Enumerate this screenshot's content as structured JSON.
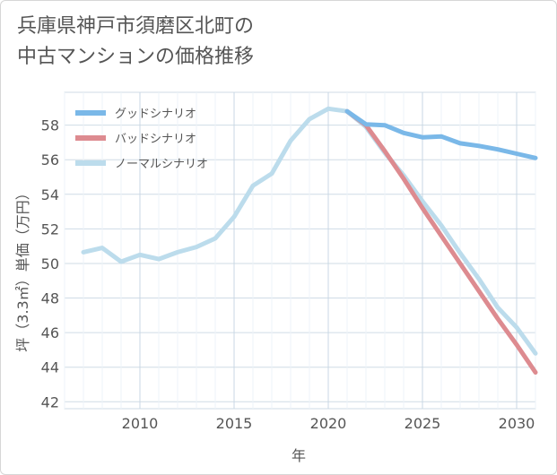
{
  "page_title": "兵庫県神戸市須磨区北町の\n中古マンションの価格推移",
  "chart_data": {
    "type": "line",
    "title": "兵庫県神戸市須磨区北町の中古マンションの価格推移",
    "xlabel": "年",
    "ylabel": "坪（3.3㎡）単価（万円）",
    "xlim": [
      2006,
      2031
    ],
    "ylim": [
      41.6,
      59.9
    ],
    "xticks": [
      2010,
      2015,
      2020,
      2025,
      2030
    ],
    "yticks": [
      42,
      44,
      46,
      48,
      50,
      52,
      54,
      56,
      58
    ],
    "legend": [
      "グッドシナリオ",
      "バッドシナリオ",
      "ノーマルシナリオ"
    ],
    "series": [
      {
        "name": "グッドシナリオ",
        "color": "#7ab8e8",
        "x": [
          2021,
          2022,
          2023,
          2024,
          2025,
          2026,
          2027,
          2028,
          2029,
          2030,
          2031
        ],
        "values": [
          58.8,
          58.05,
          58.0,
          57.55,
          57.3,
          57.35,
          56.95,
          56.8,
          56.6,
          56.35,
          56.1
        ]
      },
      {
        "name": "バッドシナリオ",
        "color": "#dd8b90",
        "x": [
          2021,
          2022,
          2023,
          2024,
          2025,
          2026,
          2027,
          2028,
          2029,
          2030,
          2031
        ],
        "values": [
          58.8,
          58.0,
          56.5,
          54.9,
          53.2,
          51.6,
          50.0,
          48.4,
          46.8,
          45.3,
          43.7
        ]
      },
      {
        "name": "ノーマルシナリオ",
        "color": "#bcdcec",
        "x": [
          2007,
          2008,
          2009,
          2010,
          2011,
          2012,
          2013,
          2014,
          2015,
          2016,
          2017,
          2018,
          2019,
          2020,
          2021,
          2022,
          2023,
          2024,
          2025,
          2026,
          2027,
          2028,
          2029,
          2030,
          2031
        ],
        "values": [
          50.65,
          50.9,
          50.1,
          50.5,
          50.25,
          50.65,
          50.95,
          51.45,
          52.7,
          54.5,
          55.2,
          57.1,
          58.35,
          58.95,
          58.8,
          57.9,
          56.4,
          55.1,
          53.6,
          52.2,
          50.6,
          49.1,
          47.45,
          46.3,
          44.8
        ]
      }
    ]
  }
}
